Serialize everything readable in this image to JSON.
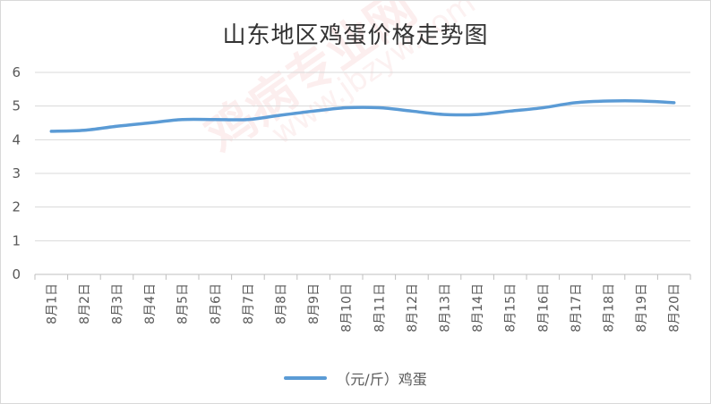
{
  "watermark": {
    "text": "鸡病专业网",
    "url": "www.jbzyw.com"
  },
  "chart_data": {
    "type": "line",
    "title": "山东地区鸡蛋价格走势图",
    "categories": [
      "8月1日",
      "8月2日",
      "8月3日",
      "8月4日",
      "8月5日",
      "8月6日",
      "8月7日",
      "8月8日",
      "8月9日",
      "8月10日",
      "8月11日",
      "8月12日",
      "8月13日",
      "8月14日",
      "8月15日",
      "8月16日",
      "8月17日",
      "8月18日",
      "8月19日",
      "8月20日"
    ],
    "series": [
      {
        "name": "（元/斤）鸡蛋",
        "color": "#5b9bd5",
        "values": [
          4.25,
          4.28,
          4.4,
          4.5,
          4.6,
          4.6,
          4.6,
          4.73,
          4.85,
          4.95,
          4.95,
          4.85,
          4.75,
          4.75,
          4.85,
          4.95,
          5.1,
          5.15,
          5.15,
          5.1
        ]
      }
    ],
    "ylim": [
      0,
      6
    ],
    "yticks": [
      0,
      1,
      2,
      3,
      4,
      5,
      6
    ],
    "grid": true,
    "legend_position": "bottom"
  }
}
